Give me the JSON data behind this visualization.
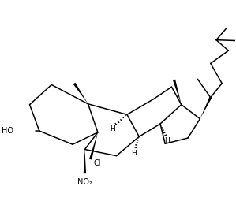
{
  "background": "#ffffff",
  "line_color": "#000000",
  "line_width": 1.1,
  "font_size": 6.5,
  "figsize": [
    2.99,
    2.6
  ],
  "dpi": 100,
  "xlim": [
    0,
    10.0
  ],
  "ylim": [
    1.5,
    9.0
  ]
}
